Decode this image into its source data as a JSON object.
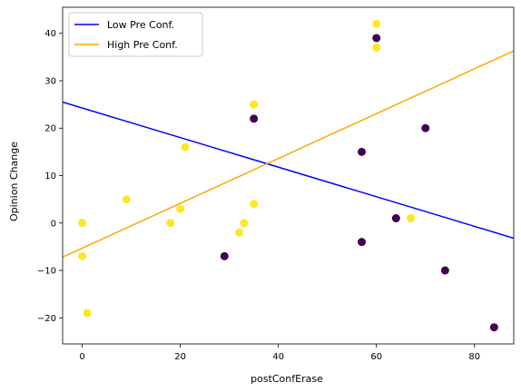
{
  "chart_data": {
    "type": "scatter",
    "title": "",
    "xlabel": "postConfErase",
    "ylabel": "Opinion Change",
    "xlim": [
      -4,
      88
    ],
    "ylim": [
      -25.5,
      45.5
    ],
    "xticks": [
      0,
      20,
      40,
      60,
      80
    ],
    "yticks": [
      -20,
      -10,
      0,
      10,
      20,
      30,
      40
    ],
    "grid": false,
    "legend_position": "top-left",
    "series": [
      {
        "name": "Low Pre Conf.",
        "kind": "line",
        "color": "#0000ff",
        "x": [
          -4,
          88
        ],
        "y": [
          25.5,
          -3.2
        ]
      },
      {
        "name": "High Pre Conf.",
        "kind": "line",
        "color": "#ffa500",
        "x": [
          -4,
          88
        ],
        "y": [
          -7.2,
          36.3
        ]
      }
    ],
    "points": [
      {
        "group": "low",
        "color": "#440154",
        "points": [
          [
            29,
            -7
          ],
          [
            35,
            22
          ],
          [
            57,
            15
          ],
          [
            57,
            -4
          ],
          [
            60,
            39
          ],
          [
            64,
            1
          ],
          [
            70,
            20
          ],
          [
            74,
            -10
          ],
          [
            84,
            -22
          ]
        ]
      },
      {
        "group": "high",
        "color": "#fde725",
        "points": [
          [
            0,
            0
          ],
          [
            0,
            -7
          ],
          [
            1,
            -19
          ],
          [
            9,
            5
          ],
          [
            18,
            0
          ],
          [
            20,
            3
          ],
          [
            21,
            16
          ],
          [
            32,
            -2
          ],
          [
            33,
            0
          ],
          [
            35,
            25
          ],
          [
            35,
            4
          ],
          [
            60,
            42
          ],
          [
            60,
            37
          ],
          [
            67,
            1
          ]
        ]
      }
    ]
  }
}
